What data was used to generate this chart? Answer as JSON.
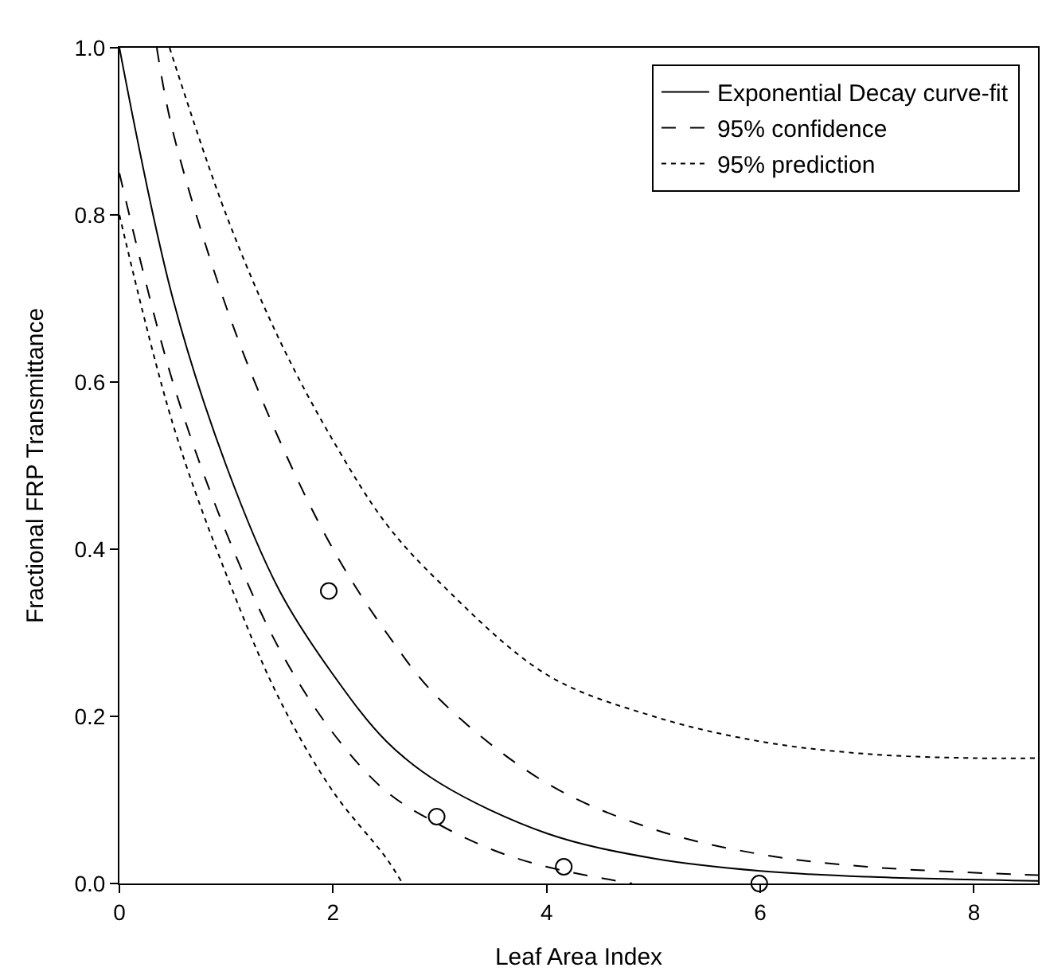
{
  "chart_data": {
    "type": "line",
    "xlabel": "Leaf Area Index",
    "ylabel": "Fractional FRP Transmittance",
    "xlim": [
      0,
      8.6
    ],
    "ylim": [
      0,
      1.0
    ],
    "xticks": [
      0,
      2,
      4,
      6,
      8
    ],
    "yticks": [
      {
        "value": 0,
        "label": "0.0"
      },
      0.2,
      0.4,
      0.6,
      0.8,
      {
        "value": 1,
        "label": "1.0"
      }
    ],
    "legend": "top right",
    "series": [
      {
        "name": "Exponential Decay curve-fit",
        "color": "#000000",
        "line_style": "solid",
        "x": [
          0,
          0.5,
          1,
          1.5,
          2,
          2.5,
          3,
          4,
          5,
          6,
          7,
          8.6
        ],
        "values": [
          1.0,
          0.7,
          0.5,
          0.35,
          0.25,
          0.17,
          0.12,
          0.06,
          0.03,
          0.015,
          0.008,
          0.003
        ]
      },
      {
        "name": "95% confidence",
        "color": "#000000",
        "line_style": "dashed",
        "x": [
          0.35,
          0.5,
          1,
          1.5,
          2,
          2.5,
          3,
          4,
          5,
          6,
          7,
          8.6
        ],
        "values": [
          1.0,
          0.9,
          0.69,
          0.53,
          0.4,
          0.3,
          0.22,
          0.12,
          0.065,
          0.035,
          0.02,
          0.01
        ]
      },
      {
        "color": "#000000",
        "line_style": "dashed",
        "x": [
          0,
          0.5,
          1,
          1.5,
          2,
          2.5,
          3,
          3.5,
          4,
          4.8
        ],
        "values": [
          0.85,
          0.6,
          0.42,
          0.28,
          0.18,
          0.11,
          0.07,
          0.04,
          0.02,
          0.0
        ]
      },
      {
        "name": "95% prediction",
        "color": "#000000",
        "line_style": "dotted",
        "x": [
          0.47,
          1,
          1.5,
          2,
          2.5,
          3,
          4,
          5,
          6,
          7,
          8,
          8.6
        ],
        "values": [
          1.0,
          0.8,
          0.65,
          0.53,
          0.43,
          0.36,
          0.25,
          0.2,
          0.17,
          0.155,
          0.15,
          0.15
        ]
      },
      {
        "color": "#000000",
        "line_style": "dotted",
        "x": [
          0,
          0.5,
          1,
          1.5,
          2,
          2.5,
          2.65
        ],
        "values": [
          0.8,
          0.55,
          0.37,
          0.22,
          0.11,
          0.03,
          0.0
        ]
      },
      {
        "type": "scatter",
        "marker": "circle",
        "color": "#000000",
        "x": [
          1.96,
          2.97,
          4.16,
          5.99
        ],
        "values": [
          0.35,
          0.08,
          0.02,
          0.0
        ]
      }
    ]
  }
}
